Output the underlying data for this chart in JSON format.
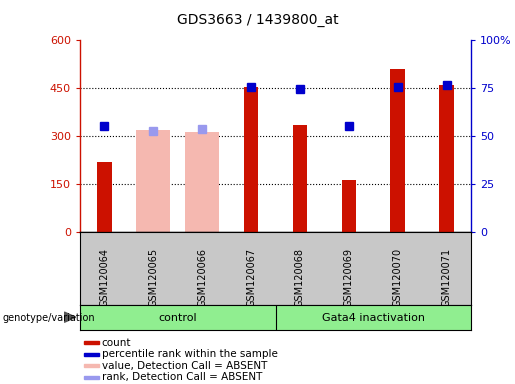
{
  "title": "GDS3663 / 1439800_at",
  "samples": [
    "GSM120064",
    "GSM120065",
    "GSM120066",
    "GSM120067",
    "GSM120068",
    "GSM120069",
    "GSM120070",
    "GSM120071"
  ],
  "count_values": [
    220,
    null,
    null,
    455,
    335,
    165,
    510,
    460
  ],
  "count_absent_values": [
    null,
    320,
    315,
    null,
    null,
    null,
    null,
    null
  ],
  "percentile_values_right": [
    55.5,
    null,
    null,
    75.5,
    74.5,
    55.5,
    75.5,
    76.5
  ],
  "percentile_absent_values_right": [
    null,
    53.0,
    54.0,
    null,
    null,
    null,
    null,
    null
  ],
  "groups": [
    {
      "label": "control",
      "start": 0,
      "end": 4
    },
    {
      "label": "Gata4 inactivation",
      "start": 4,
      "end": 8
    }
  ],
  "ylim_left": [
    0,
    600
  ],
  "ylim_right": [
    0,
    100
  ],
  "yticks_left": [
    0,
    150,
    300,
    450,
    600
  ],
  "yticks_right": [
    0,
    25,
    50,
    75,
    100
  ],
  "yticklabels_right": [
    "0",
    "25",
    "50",
    "75",
    "100%"
  ],
  "bar_color_count": "#cc1100",
  "bar_color_absent": "#f5b8b0",
  "marker_color_present": "#0000cc",
  "marker_color_absent": "#9999ee",
  "group_bg": "#90ee90",
  "xlabel_area_color": "#c8c8c8",
  "left_axis_color": "#cc1100",
  "right_axis_color": "#0000cc",
  "legend_labels": [
    "count",
    "percentile rank within the sample",
    "value, Detection Call = ABSENT",
    "rank, Detection Call = ABSENT"
  ]
}
